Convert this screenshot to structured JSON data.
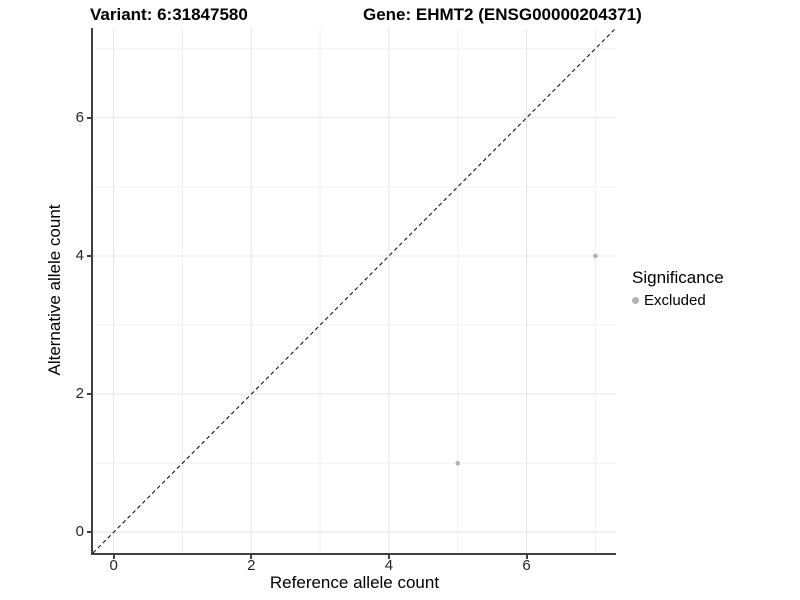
{
  "titles": {
    "variant": "Variant: 6:31847580",
    "gene": "Gene: EHMT2 (ENSG00000204371)"
  },
  "legend": {
    "title": "Significance",
    "items": [
      {
        "label": "Excluded",
        "color": "#b3b3b3"
      }
    ]
  },
  "colors": {
    "background": "#ffffff",
    "grid_major": "#e5e5e5",
    "grid_minor": "#f0f0f0",
    "axis_line": "#404040",
    "tick_mark": "#404040",
    "tick_label": "#262626",
    "text": "#000000",
    "point": "#b3b3b3",
    "reference_line": "#000000"
  },
  "chart_data": {
    "type": "scatter",
    "title": "Variant: 6:31847580   Gene: EHMT2 (ENSG00000204371)",
    "xlabel": "Reference allele count",
    "ylabel": "Alternative allele count",
    "xlim": [
      -0.3,
      7.3
    ],
    "ylim": [
      -0.3,
      7.3
    ],
    "x_major": [
      0,
      2,
      4,
      6
    ],
    "x_minor": [
      1,
      3,
      5,
      7
    ],
    "y_major": [
      0,
      2,
      4,
      6
    ],
    "y_minor": [
      1,
      3,
      5,
      7
    ],
    "grid": "on",
    "legend_position": "right",
    "series": [
      {
        "name": "Excluded",
        "color": "#b3b3b3",
        "points": [
          [
            5,
            1
          ],
          [
            7,
            4
          ]
        ]
      }
    ],
    "reference_line": {
      "type": "identity y=x",
      "style": "dashed",
      "color": "#000000"
    }
  }
}
